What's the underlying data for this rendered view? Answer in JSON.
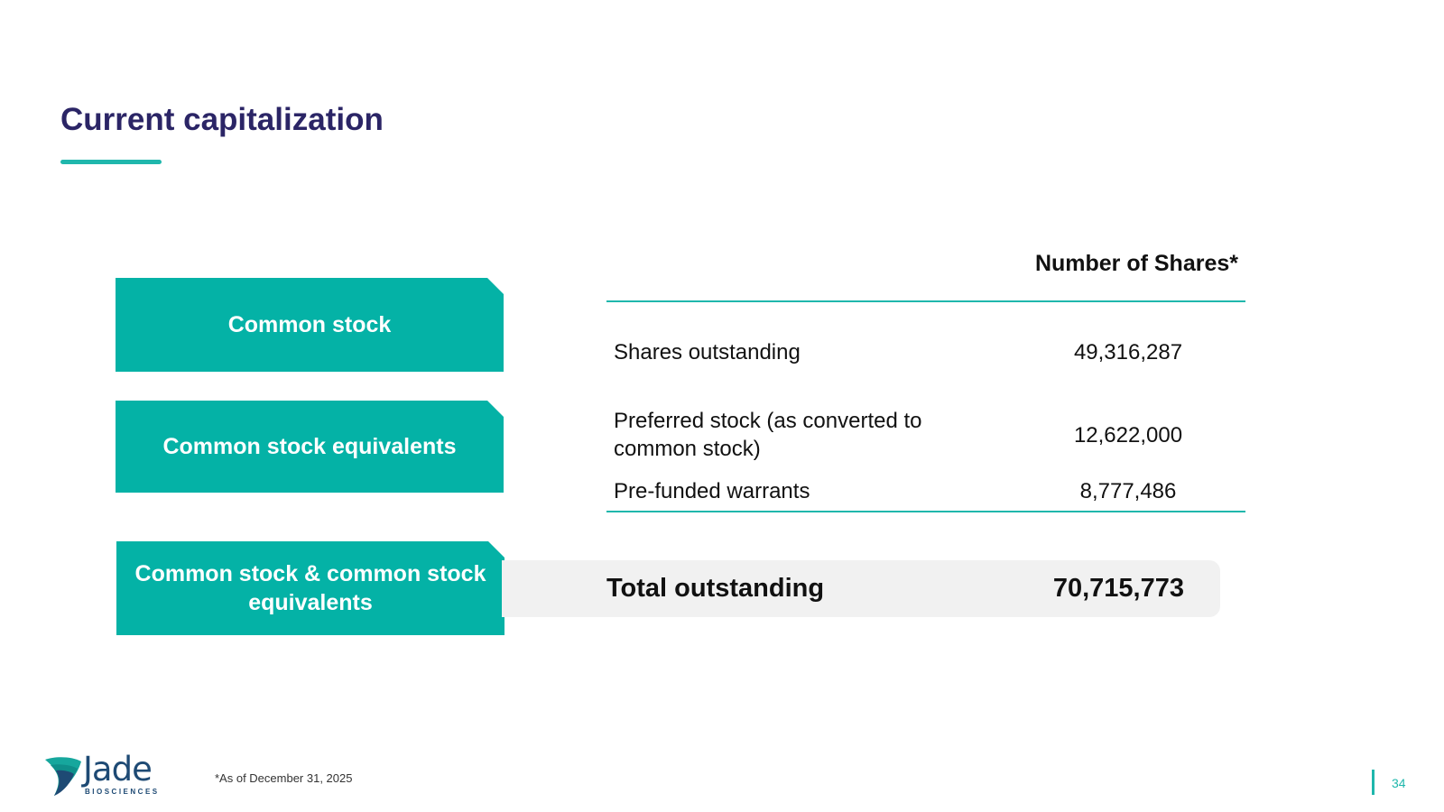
{
  "slide": {
    "title": "Current capitalization",
    "page_number": "34",
    "footnote": "*As of December 31, 2025"
  },
  "categories": [
    {
      "label": "Common stock"
    },
    {
      "label": "Common stock equivalents"
    },
    {
      "label": "Common stock & common stock equivalents"
    }
  ],
  "table": {
    "column_header": "Number of Shares*",
    "rows": [
      {
        "label": "Shares outstanding",
        "value": "49,316,287"
      },
      {
        "label": "Preferred stock (as converted to common stock)",
        "value": "12,622,000"
      },
      {
        "label": "Pre-funded warrants",
        "value": "8,777,486"
      }
    ],
    "total": {
      "label": "Total outstanding",
      "value": "70,715,773"
    }
  },
  "logo": {
    "name": "Jade",
    "subtitle": "BIOSCIENCES"
  },
  "colors": {
    "accent": "#04b2a6",
    "title": "#2b2566",
    "total_bg": "#f1f1f1"
  }
}
